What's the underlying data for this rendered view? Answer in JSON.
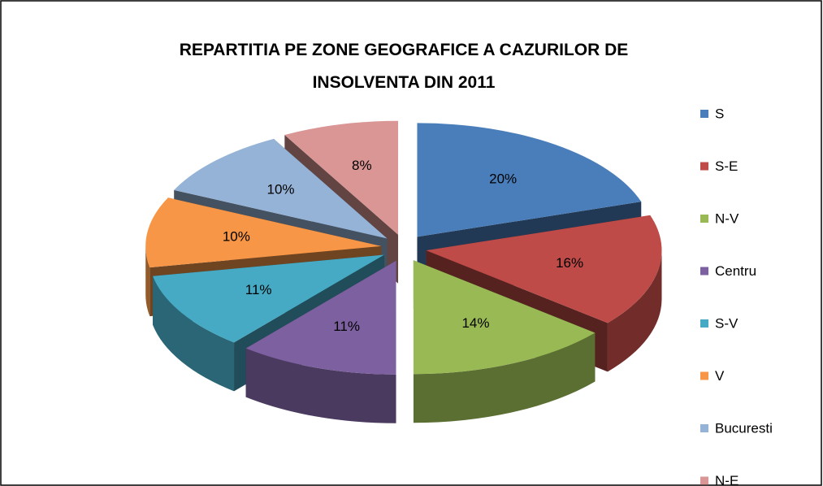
{
  "chart_data": {
    "type": "pie3d",
    "title": "REPARTITIA PE ZONE GEOGRAFICE A CAZURILOR DE INSOLVENTA DIN 2011",
    "categories": [
      "S",
      "S-E",
      "N-V",
      "Centru",
      "S-V",
      "V",
      "Bucuresti",
      "N-E"
    ],
    "values": [
      20,
      16,
      14,
      11,
      11,
      10,
      10,
      8
    ],
    "value_labels": [
      "20%",
      "16%",
      "14%",
      "11%",
      "11%",
      "10%",
      "10%",
      "8%"
    ],
    "colors": [
      "#4a7ebb",
      "#be4b48",
      "#98b954",
      "#7d60a0",
      "#46aac5",
      "#f79646",
      "#95b3d7",
      "#d99694"
    ],
    "legend": "right"
  }
}
